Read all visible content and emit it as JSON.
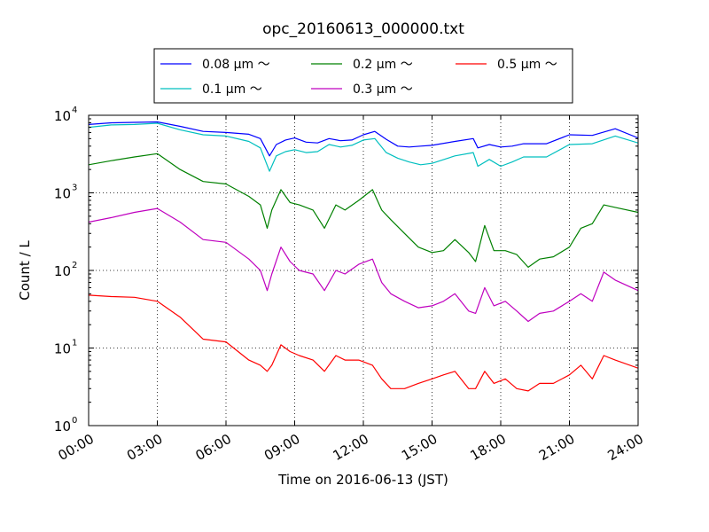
{
  "chart_data": {
    "type": "line",
    "title": "opc_20160613_000000.txt",
    "xlabel": "Time on 2016-06-13 (JST)",
    "ylabel": "Count / L",
    "x_ticks": [
      "00:00",
      "03:00",
      "06:00",
      "09:00",
      "12:00",
      "15:00",
      "18:00",
      "21:00",
      "24:00"
    ],
    "y_ticks": [
      {
        "value": 1,
        "base": "10",
        "exp": "0"
      },
      {
        "value": 10,
        "base": "10",
        "exp": "1"
      },
      {
        "value": 100,
        "base": "10",
        "exp": "2"
      },
      {
        "value": 1000,
        "base": "10",
        "exp": "3"
      },
      {
        "value": 10000,
        "base": "10",
        "exp": "4"
      }
    ],
    "xlim": [
      0,
      24
    ],
    "ylim": [
      1,
      10000
    ],
    "yscale": "log",
    "grid": true,
    "legend_position": "top-center",
    "series": [
      {
        "name": "0.08 μm ～",
        "color": "#0000ff",
        "x": [
          0,
          1,
          2,
          3,
          4,
          5,
          6,
          7,
          7.5,
          7.9,
          8.2,
          8.6,
          9,
          9.5,
          10,
          10.5,
          11,
          11.5,
          12,
          12.5,
          13,
          13.5,
          14,
          14.5,
          15,
          16,
          16.8,
          17,
          17.5,
          18,
          18.5,
          19,
          20,
          21,
          22,
          23,
          24
        ],
        "y": [
          7600,
          8000,
          8100,
          8200,
          7200,
          6200,
          6000,
          5700,
          5000,
          3000,
          4200,
          4800,
          5100,
          4500,
          4400,
          5000,
          4700,
          4800,
          5600,
          6200,
          4900,
          4000,
          3900,
          4000,
          4100,
          4600,
          5000,
          3800,
          4200,
          3900,
          4000,
          4300,
          4300,
          5600,
          5500,
          6700,
          5100
        ]
      },
      {
        "name": "0.1 μm ～",
        "color": "#00bfbf",
        "x": [
          0,
          1,
          2,
          3,
          4,
          5,
          6,
          7,
          7.5,
          7.9,
          8.2,
          8.6,
          9,
          9.5,
          10,
          10.5,
          11,
          11.5,
          12,
          12.5,
          13,
          13.5,
          14,
          14.5,
          15,
          16,
          16.8,
          17,
          17.5,
          18,
          18.5,
          19,
          20,
          21,
          22,
          23,
          24
        ],
        "y": [
          7000,
          7500,
          7600,
          7900,
          6500,
          5600,
          5400,
          4600,
          3800,
          1900,
          3000,
          3400,
          3600,
          3300,
          3400,
          4200,
          3900,
          4100,
          4800,
          5000,
          3300,
          2800,
          2500,
          2300,
          2400,
          3000,
          3300,
          2200,
          2700,
          2200,
          2500,
          2900,
          2900,
          4200,
          4300,
          5400,
          4400
        ]
      },
      {
        "name": "0.2 μm ～",
        "color": "#008000",
        "x": [
          0,
          1,
          2,
          3,
          4,
          5,
          6,
          7,
          7.5,
          7.8,
          8,
          8.4,
          8.8,
          9.2,
          9.8,
          10.3,
          10.8,
          11.2,
          11.8,
          12.4,
          12.8,
          13.2,
          13.8,
          14.4,
          15,
          15.5,
          16,
          16.6,
          16.9,
          17.3,
          17.7,
          18.2,
          18.7,
          19.2,
          19.7,
          20.3,
          21,
          21.5,
          22,
          22.5,
          23,
          24
        ],
        "y": [
          2300,
          2600,
          2900,
          3200,
          2000,
          1400,
          1300,
          900,
          700,
          350,
          600,
          1100,
          750,
          700,
          600,
          350,
          700,
          600,
          800,
          1100,
          600,
          450,
          300,
          200,
          170,
          180,
          250,
          170,
          130,
          380,
          180,
          180,
          160,
          110,
          140,
          150,
          200,
          350,
          400,
          700,
          650,
          560
        ]
      },
      {
        "name": "0.3 μm ～",
        "color": "#bf00bf",
        "x": [
          0,
          1,
          2,
          3,
          4,
          5,
          6,
          7,
          7.5,
          7.8,
          8,
          8.4,
          8.8,
          9.2,
          9.8,
          10.3,
          10.8,
          11.2,
          11.8,
          12.4,
          12.8,
          13.2,
          13.8,
          14.4,
          15,
          15.5,
          16,
          16.6,
          16.9,
          17.3,
          17.7,
          18.2,
          18.7,
          19.2,
          19.7,
          20.3,
          21,
          21.5,
          22,
          22.5,
          23,
          24
        ],
        "y": [
          420,
          480,
          560,
          630,
          420,
          250,
          230,
          140,
          100,
          55,
          90,
          200,
          130,
          100,
          90,
          55,
          100,
          90,
          120,
          140,
          70,
          50,
          40,
          33,
          35,
          40,
          50,
          30,
          28,
          60,
          35,
          40,
          30,
          22,
          28,
          30,
          40,
          50,
          40,
          95,
          75,
          55
        ]
      },
      {
        "name": "0.5 μm ～",
        "color": "#ff0000",
        "x": [
          0,
          1,
          2,
          3,
          4,
          5,
          6,
          7,
          7.5,
          7.8,
          8,
          8.4,
          8.8,
          9.2,
          9.8,
          10.3,
          10.8,
          11.2,
          11.8,
          12.4,
          12.8,
          13.2,
          13.8,
          14.4,
          15,
          15.5,
          16,
          16.6,
          16.9,
          17.3,
          17.7,
          18.2,
          18.7,
          19.2,
          19.7,
          20.3,
          21,
          21.5,
          22,
          22.5,
          23,
          24
        ],
        "y": [
          48,
          46,
          45,
          40,
          25,
          13,
          12,
          7,
          6,
          5,
          6,
          11,
          9,
          8,
          7,
          5,
          8,
          7,
          7,
          6,
          4,
          3,
          3,
          3.5,
          4,
          4.5,
          5,
          3,
          3,
          5,
          3.5,
          4,
          3,
          2.8,
          3.5,
          3.5,
          4.5,
          6,
          4,
          8,
          7,
          5.5
        ]
      }
    ]
  }
}
